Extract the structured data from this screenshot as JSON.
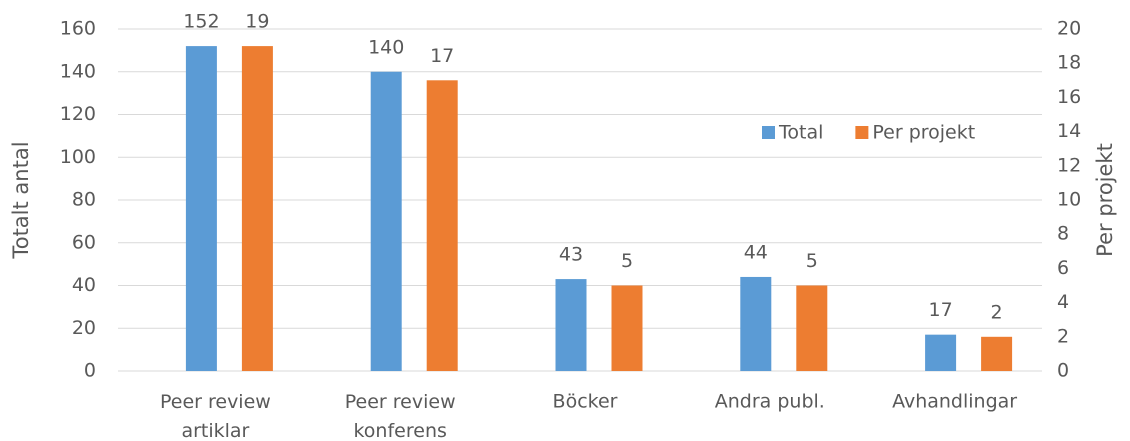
{
  "chart_data": {
    "type": "bar",
    "categories": [
      "Peer review artiklar",
      "Peer review konferens",
      "Böcker",
      "Andra publ.",
      "Avhandlingar"
    ],
    "series": [
      {
        "name": "Total",
        "color": "#5b9bd5",
        "values": [
          152,
          140,
          43,
          44,
          17
        ]
      },
      {
        "name": "Per projekt",
        "color": "#ed7d31",
        "axis": "y2",
        "values": [
          19,
          17,
          5,
          5,
          2
        ]
      }
    ],
    "ylabel": "Totalt antal",
    "y2label": "Per projekt",
    "ylim": [
      0,
      160
    ],
    "yticks": [
      0,
      20,
      40,
      60,
      80,
      100,
      120,
      140,
      160
    ],
    "y2lim": [
      0,
      20
    ],
    "y2ticks": [
      0,
      2,
      4,
      6,
      8,
      10,
      12,
      14,
      16,
      18,
      20
    ],
    "grid": true,
    "legend": "right"
  }
}
